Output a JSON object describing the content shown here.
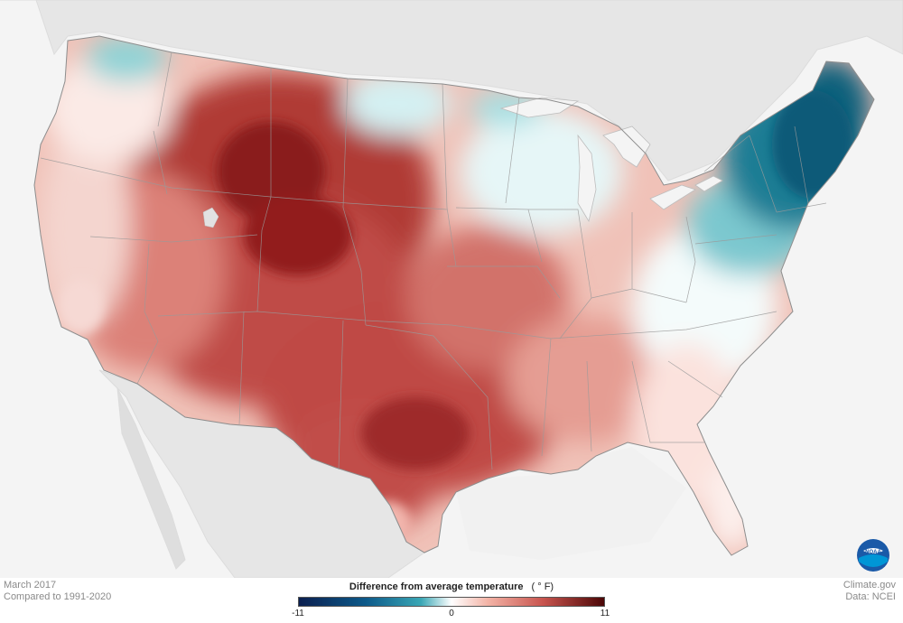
{
  "map": {
    "date": "March 2017",
    "baseline": "Compared to 1991-2020",
    "credit": "Climate.gov",
    "data_source": "Data: NCEI",
    "logo_text": "NOAA"
  },
  "legend": {
    "title": "Difference from average temperature",
    "unit": "( ° F)",
    "min": "-11",
    "mid": "0",
    "max": "11",
    "colors": [
      "#0b1f4f",
      "#0d5a8a",
      "#3aa7b5",
      "#ffffff",
      "#f3b3a6",
      "#c8544e",
      "#4b0606"
    ]
  }
}
